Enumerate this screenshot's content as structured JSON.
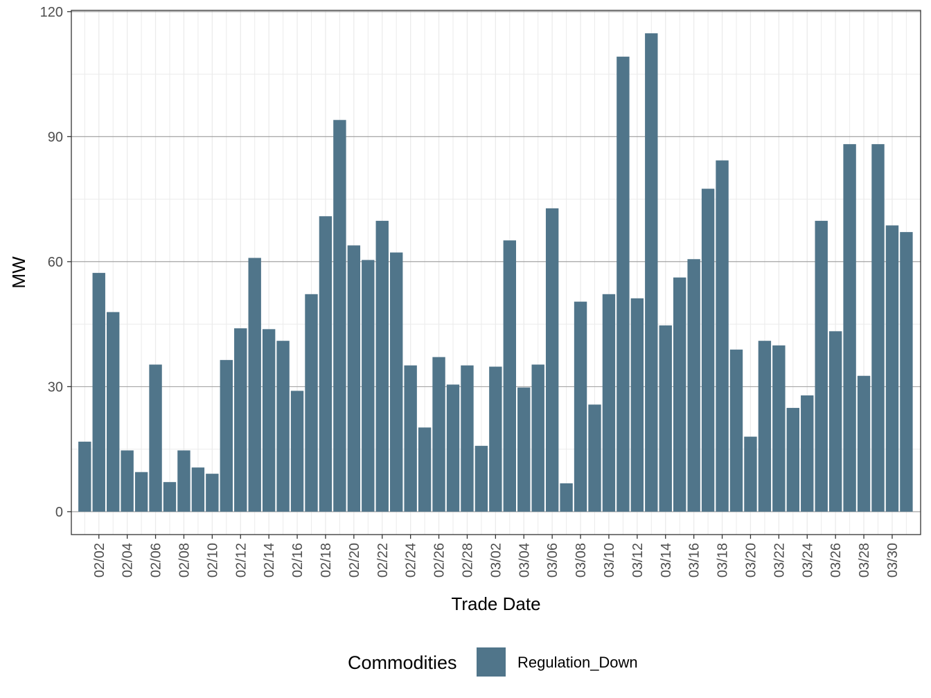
{
  "chart_data": {
    "type": "bar",
    "xlabel": "Trade Date",
    "ylabel": "MW",
    "ylim": [
      -5.5,
      120.3
    ],
    "yticks": [
      0,
      30,
      60,
      90,
      120
    ],
    "grid": true,
    "legend_position": "bottom",
    "legend_title": "Commodities",
    "bar_color": "#50758a",
    "series": [
      {
        "name": "Regulation_Down",
        "x": [
          "02/01",
          "02/02",
          "02/03",
          "02/04",
          "02/05",
          "02/06",
          "02/07",
          "02/08",
          "02/09",
          "02/10",
          "02/11",
          "02/12",
          "02/13",
          "02/14",
          "02/15",
          "02/16",
          "02/17",
          "02/18",
          "02/19",
          "02/20",
          "02/21",
          "02/22",
          "02/23",
          "02/24",
          "02/25",
          "02/26",
          "02/27",
          "02/28",
          "03/01",
          "03/02",
          "03/03",
          "03/04",
          "03/05",
          "03/06",
          "03/07",
          "03/08",
          "03/09",
          "03/10",
          "03/11",
          "03/12",
          "03/13",
          "03/14",
          "03/15",
          "03/16",
          "03/17",
          "03/18",
          "03/19",
          "03/20",
          "03/21",
          "03/22",
          "03/23",
          "03/24",
          "03/25",
          "03/26",
          "03/27",
          "03/28",
          "03/29",
          "03/30",
          "03/31"
        ],
        "values": [
          16.8,
          57.3,
          47.9,
          14.7,
          9.5,
          35.3,
          7.1,
          14.7,
          10.6,
          9.1,
          36.4,
          44.0,
          60.9,
          43.8,
          41.0,
          29.0,
          52.2,
          70.9,
          94.0,
          63.9,
          60.4,
          69.8,
          62.2,
          35.1,
          20.2,
          37.1,
          30.5,
          35.1,
          15.8,
          34.8,
          65.1,
          29.8,
          35.3,
          72.8,
          6.8,
          50.4,
          25.7,
          52.2,
          109.2,
          51.2,
          114.8,
          44.7,
          56.2,
          60.6,
          77.5,
          84.3,
          38.9,
          18.0,
          41.0,
          39.9,
          24.9,
          27.9,
          69.8,
          43.3,
          88.2,
          32.6,
          88.2,
          68.7,
          67.1
        ]
      }
    ],
    "xtick_labels": [
      "02/02",
      "02/04",
      "02/06",
      "02/08",
      "02/10",
      "02/12",
      "02/14",
      "02/16",
      "02/18",
      "02/20",
      "02/22",
      "02/24",
      "02/26",
      "02/28",
      "03/02",
      "03/04",
      "03/06",
      "03/08",
      "03/10",
      "03/12",
      "03/14",
      "03/16",
      "03/18",
      "03/20",
      "03/22",
      "03/24",
      "03/26",
      "03/28",
      "03/30"
    ]
  }
}
